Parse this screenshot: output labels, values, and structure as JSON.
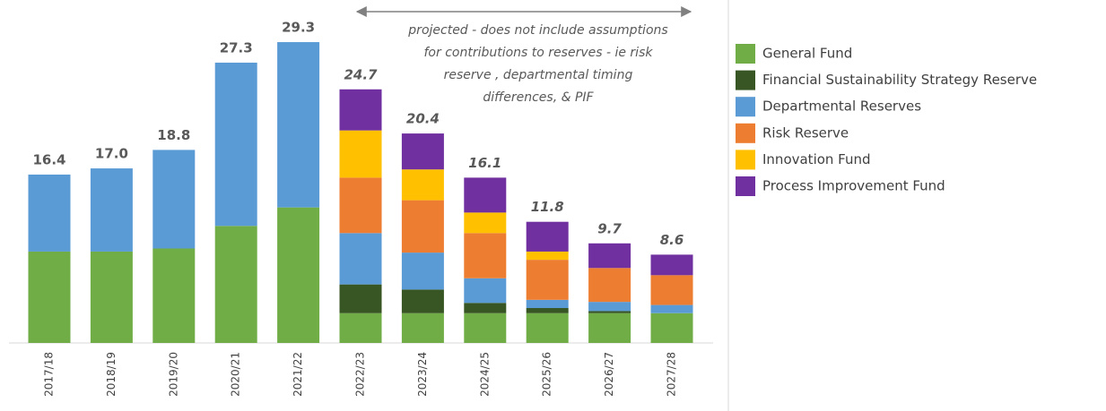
{
  "chart_data": {
    "type": "stacked_bar",
    "categories": [
      "2017/18",
      "2018/19",
      "2019/20",
      "2020/21",
      "2021/22",
      "2022/23",
      "2023/24",
      "2024/25",
      "2025/26",
      "2026/27",
      "2027/28"
    ],
    "series": [
      {
        "name": "General Fund",
        "color": "#70ad47",
        "values": [
          8.9,
          8.9,
          9.2,
          11.4,
          13.2,
          2.9,
          2.9,
          2.9,
          2.9,
          2.9,
          2.9
        ]
      },
      {
        "name": "Financial Sustainability Strategy Reserve",
        "color": "#375623",
        "values": [
          0,
          0,
          0,
          0,
          0,
          2.8,
          2.3,
          1.0,
          0.5,
          0.2,
          0
        ]
      },
      {
        "name": "Departmental Reserves",
        "color": "#5b9bd5",
        "values": [
          7.5,
          8.1,
          9.6,
          15.9,
          16.1,
          5.0,
          3.6,
          2.4,
          0.8,
          0.9,
          0.8
        ]
      },
      {
        "name": "Risk Reserve",
        "color": "#ed7d31",
        "values": [
          0,
          0,
          0,
          0,
          0,
          5.4,
          5.1,
          4.4,
          3.9,
          3.3,
          2.9
        ]
      },
      {
        "name": "Innovation Fund",
        "color": "#ffc000",
        "values": [
          0,
          0,
          0,
          0,
          0,
          4.6,
          3.0,
          2.0,
          0.8,
          0,
          0
        ]
      },
      {
        "name": "Process Improvement Fund",
        "color": "#7030a0",
        "values": [
          0,
          0,
          0,
          0,
          0,
          4.0,
          3.5,
          3.4,
          2.9,
          2.4,
          2.0
        ]
      }
    ],
    "totals": [
      16.4,
      17.0,
      18.8,
      27.3,
      29.3,
      24.7,
      20.4,
      16.1,
      11.8,
      9.7,
      8.6
    ],
    "value_labels": [
      "16.4",
      "17.0",
      "18.8",
      "27.3",
      "29.3",
      "24.7",
      "20.4",
      "16.1",
      "11.8",
      "9.7",
      "8.6"
    ],
    "annotation": [
      "projected - does not include assumptions",
      "for contributions to reserves - ie risk",
      "reserve , departmental timing",
      "differences, & PIF"
    ],
    "ylim": [
      0,
      30
    ],
    "legend": "right"
  }
}
